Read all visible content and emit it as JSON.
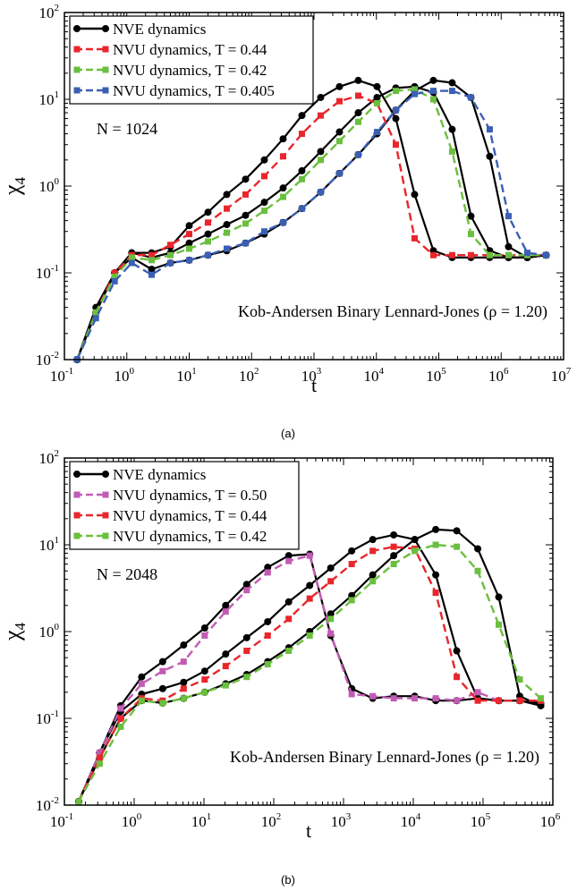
{
  "colors": {
    "nve": "#000000",
    "T050": "#c25bb4",
    "T044": "#e8262c",
    "T042": "#6abf3e",
    "T0405": "#3b5fb3"
  },
  "chart_data": [
    {
      "type": "line",
      "panel_label": "(a)",
      "xlabel": "t",
      "ylabel_main": "χ",
      "ylabel_sub": "4",
      "xscale": "log",
      "yscale": "log",
      "xlim": [
        0.1,
        10000000
      ],
      "ylim": [
        0.01,
        100
      ],
      "x_ticks": [
        {
          "v": 0.1,
          "b": "10",
          "e": "-1"
        },
        {
          "v": 1,
          "b": "10",
          "e": "0"
        },
        {
          "v": 10,
          "b": "10",
          "e": "1"
        },
        {
          "v": 100,
          "b": "10",
          "e": "2"
        },
        {
          "v": 1000,
          "b": "10",
          "e": "3"
        },
        {
          "v": 10000,
          "b": "10",
          "e": "4"
        },
        {
          "v": 100000,
          "b": "10",
          "e": "5"
        },
        {
          "v": 1000000,
          "b": "10",
          "e": "6"
        },
        {
          "v": 10000000,
          "b": "10",
          "e": "7"
        }
      ],
      "y_ticks": [
        {
          "v": 0.01,
          "b": "10",
          "e": "-2"
        },
        {
          "v": 0.1,
          "b": "10",
          "e": "-1"
        },
        {
          "v": 1,
          "b": "10",
          "e": "0"
        },
        {
          "v": 10,
          "b": "10",
          "e": "1"
        },
        {
          "v": 100,
          "b": "10",
          "e": "2"
        }
      ],
      "annotation": "N = 1024",
      "system_label": "Kob-Andersen Binary Lennard-Jones (ρ = 1.20)",
      "legend_placement": "top-left",
      "series": [
        {
          "name": "NVE dynamics",
          "color_key": "nve",
          "dashed": false,
          "marker": "circle",
          "x": [
            0.16,
            0.32,
            0.64,
            1.2,
            2.5,
            5,
            10,
            20,
            40,
            80,
            160,
            320,
            640,
            1280,
            2560,
            5120,
            10240,
            20480,
            40960,
            81920,
            163840,
            327680,
            655360,
            1310720,
            2621440,
            5242880
          ],
          "y": [
            0.01,
            0.04,
            0.1,
            0.17,
            0.17,
            0.2,
            0.35,
            0.5,
            0.8,
            1.2,
            2.0,
            3.5,
            6.5,
            10.5,
            14.0,
            16.5,
            14.0,
            6.0,
            0.8,
            0.18,
            0.15,
            0.15,
            0.15,
            0.15,
            0.15,
            0.16
          ]
        },
        {
          "name": "",
          "color_key": "nve",
          "dashed": false,
          "marker": "circle",
          "x": [
            0.16,
            0.32,
            0.64,
            1.2,
            2.5,
            5,
            10,
            20,
            40,
            80,
            160,
            320,
            640,
            1280,
            2560,
            5120,
            10240,
            20480,
            40960,
            81920,
            163840,
            327680,
            655360,
            1310720,
            2621440,
            5242880
          ],
          "y": [
            0.01,
            0.035,
            0.1,
            0.17,
            0.15,
            0.17,
            0.22,
            0.28,
            0.36,
            0.46,
            0.65,
            0.95,
            1.5,
            2.5,
            4.2,
            7.0,
            10.5,
            13.5,
            14.0,
            12.0,
            4.5,
            0.45,
            0.18,
            0.15,
            0.15,
            0.16
          ]
        },
        {
          "name": "",
          "color_key": "nve",
          "dashed": false,
          "marker": "circle",
          "x": [
            0.16,
            0.32,
            0.64,
            1.2,
            2.5,
            5,
            10,
            20,
            40,
            80,
            160,
            320,
            640,
            1280,
            2560,
            5120,
            10240,
            20480,
            40960,
            81920,
            163840,
            327680,
            655360,
            1310720,
            2621440,
            5242880
          ],
          "y": [
            0.01,
            0.035,
            0.1,
            0.15,
            0.11,
            0.13,
            0.14,
            0.16,
            0.18,
            0.22,
            0.28,
            0.38,
            0.55,
            0.85,
            1.4,
            2.3,
            4.0,
            7.5,
            12.5,
            16.5,
            15.5,
            10.5,
            2.2,
            0.2,
            0.15,
            0.16
          ]
        },
        {
          "name": "NVU dynamics, T = 0.44",
          "color_key": "T044",
          "dashed": true,
          "marker": "square",
          "x": [
            0.16,
            0.32,
            0.64,
            1.2,
            2.5,
            5,
            10,
            20,
            40,
            80,
            160,
            320,
            640,
            1280,
            2560,
            5120,
            10240,
            20480,
            40960,
            81920,
            163840,
            327680,
            655360,
            1310720,
            2621440,
            5242880
          ],
          "y": [
            0.01,
            0.035,
            0.1,
            0.16,
            0.16,
            0.21,
            0.28,
            0.38,
            0.55,
            0.8,
            1.3,
            2.2,
            4.0,
            6.5,
            9.5,
            11.0,
            9.0,
            3.0,
            0.25,
            0.16,
            0.16,
            0.16,
            0.16,
            0.16,
            0.16,
            0.16
          ]
        },
        {
          "name": "NVU dynamics, T = 0.42",
          "color_key": "T042",
          "dashed": true,
          "marker": "square",
          "x": [
            0.16,
            0.32,
            0.64,
            1.2,
            2.5,
            5,
            10,
            20,
            40,
            80,
            160,
            320,
            640,
            1280,
            2560,
            5120,
            10240,
            20480,
            40960,
            81920,
            163840,
            327680,
            655360,
            1310720,
            2621440,
            5242880
          ],
          "y": [
            0.01,
            0.035,
            0.09,
            0.15,
            0.14,
            0.16,
            0.19,
            0.23,
            0.29,
            0.37,
            0.52,
            0.75,
            1.2,
            2.0,
            3.3,
            5.5,
            9.0,
            12.5,
            13.0,
            10.0,
            2.5,
            0.28,
            0.16,
            0.16,
            0.16,
            0.16
          ]
        },
        {
          "name": "NVU dynamics, T = 0.405",
          "color_key": "T0405",
          "dashed": true,
          "marker": "square",
          "x": [
            0.16,
            0.32,
            0.64,
            1.2,
            2.5,
            5,
            10,
            20,
            40,
            80,
            160,
            320,
            640,
            1280,
            2560,
            5120,
            10240,
            20480,
            40960,
            81920,
            163840,
            327680,
            655360,
            1310720,
            2621440,
            5242880
          ],
          "y": [
            0.01,
            0.03,
            0.08,
            0.13,
            0.095,
            0.13,
            0.14,
            0.16,
            0.19,
            0.22,
            0.3,
            0.38,
            0.55,
            0.85,
            1.4,
            2.3,
            4.2,
            7.5,
            11.5,
            12.5,
            12.5,
            10.5,
            4.5,
            0.45,
            0.17,
            0.16
          ]
        }
      ]
    },
    {
      "type": "line",
      "panel_label": "(b)",
      "xlabel": "t",
      "ylabel_main": "χ",
      "ylabel_sub": "4",
      "xscale": "log",
      "yscale": "log",
      "xlim": [
        0.1,
        1000000
      ],
      "ylim": [
        0.01,
        100
      ],
      "x_ticks": [
        {
          "v": 0.1,
          "b": "10",
          "e": "-1"
        },
        {
          "v": 1,
          "b": "10",
          "e": "0"
        },
        {
          "v": 10,
          "b": "10",
          "e": "1"
        },
        {
          "v": 100,
          "b": "10",
          "e": "2"
        },
        {
          "v": 1000,
          "b": "10",
          "e": "3"
        },
        {
          "v": 10000,
          "b": "10",
          "e": "4"
        },
        {
          "v": 100000,
          "b": "10",
          "e": "5"
        },
        {
          "v": 1000000,
          "b": "10",
          "e": "6"
        }
      ],
      "y_ticks": [
        {
          "v": 0.01,
          "b": "10",
          "e": "-2"
        },
        {
          "v": 0.1,
          "b": "10",
          "e": "-1"
        },
        {
          "v": 1,
          "b": "10",
          "e": "0"
        },
        {
          "v": 10,
          "b": "10",
          "e": "1"
        },
        {
          "v": 100,
          "b": "10",
          "e": "2"
        }
      ],
      "annotation": "N = 2048",
      "system_label": "Kob-Andersen Binary Lennard-Jones (ρ = 1.20)",
      "legend_placement": "top-left",
      "series": [
        {
          "name": "NVE dynamics",
          "color_key": "nve",
          "dashed": false,
          "marker": "circle",
          "x": [
            0.16,
            0.32,
            0.64,
            1.28,
            2.56,
            5.12,
            10.24,
            20.48,
            40.96,
            81.92,
            163.84,
            327.68,
            655.36,
            1310.72,
            2621.44,
            5242.88,
            10485.76,
            20971.52,
            41943.04,
            83886.08,
            167772.16,
            335544.32,
            671088.64
          ],
          "y": [
            0.011,
            0.04,
            0.14,
            0.3,
            0.45,
            0.7,
            1.1,
            2.0,
            3.5,
            5.5,
            7.5,
            7.8,
            0.9,
            0.22,
            0.17,
            0.18,
            0.18,
            0.16,
            0.16,
            0.17,
            0.16,
            0.16,
            0.14
          ]
        },
        {
          "name": "",
          "color_key": "nve",
          "dashed": false,
          "marker": "circle",
          "x": [
            0.16,
            0.32,
            0.64,
            1.28,
            2.56,
            5.12,
            10.24,
            20.48,
            40.96,
            81.92,
            163.84,
            327.68,
            655.36,
            1310.72,
            2621.44,
            5242.88,
            10485.76,
            20971.52,
            41943.04,
            83886.08,
            167772.16,
            335544.32,
            671088.64
          ],
          "y": [
            0.011,
            0.04,
            0.12,
            0.19,
            0.22,
            0.26,
            0.35,
            0.55,
            0.85,
            1.3,
            2.2,
            3.4,
            5.4,
            8.5,
            11.5,
            13.0,
            11.5,
            4.5,
            0.6,
            0.17,
            0.16,
            0.16,
            0.15
          ]
        },
        {
          "name": "",
          "color_key": "nve",
          "dashed": false,
          "marker": "circle",
          "x": [
            0.16,
            0.32,
            0.64,
            1.28,
            2.56,
            5.12,
            10.24,
            20.48,
            40.96,
            81.92,
            163.84,
            327.68,
            655.36,
            1310.72,
            2621.44,
            5242.88,
            10485.76,
            20971.52,
            41943.04,
            83886.08,
            167772.16,
            335544.32,
            671088.64
          ],
          "y": [
            0.011,
            0.035,
            0.1,
            0.16,
            0.15,
            0.17,
            0.2,
            0.25,
            0.32,
            0.45,
            0.65,
            1.0,
            1.6,
            2.6,
            4.5,
            7.5,
            11.5,
            15.0,
            14.5,
            9.0,
            2.5,
            0.18,
            0.14
          ]
        },
        {
          "name": "NVU dynamics, T = 0.50",
          "color_key": "T050",
          "dashed": true,
          "marker": "square",
          "x": [
            0.16,
            0.32,
            0.64,
            1.28,
            2.56,
            5.12,
            10.24,
            20.48,
            40.96,
            81.92,
            163.84,
            327.68,
            655.36,
            1310.72,
            2621.44,
            5242.88,
            10485.76,
            20971.52,
            41943.04,
            83886.08,
            167772.16,
            335544.32,
            671088.64
          ],
          "y": [
            0.011,
            0.04,
            0.13,
            0.25,
            0.35,
            0.45,
            0.9,
            1.7,
            3.0,
            4.8,
            6.5,
            7.5,
            0.95,
            0.19,
            0.18,
            0.17,
            0.17,
            0.17,
            0.16,
            0.2,
            0.16,
            0.16,
            0.16
          ]
        },
        {
          "name": "NVU dynamics, T = 0.44",
          "color_key": "T044",
          "dashed": true,
          "marker": "square",
          "x": [
            0.16,
            0.32,
            0.64,
            1.28,
            2.56,
            5.12,
            10.24,
            20.48,
            40.96,
            81.92,
            163.84,
            327.68,
            655.36,
            1310.72,
            2621.44,
            5242.88,
            10485.76,
            20971.52,
            41943.04,
            83886.08,
            167772.16,
            335544.32,
            671088.64
          ],
          "y": [
            0.011,
            0.035,
            0.1,
            0.17,
            0.16,
            0.22,
            0.28,
            0.4,
            0.6,
            0.9,
            1.4,
            2.4,
            3.8,
            6.0,
            8.5,
            9.5,
            9.0,
            2.8,
            0.3,
            0.16,
            0.16,
            0.16,
            0.16
          ]
        },
        {
          "name": "NVU dynamics, T = 0.42",
          "color_key": "T042",
          "dashed": true,
          "marker": "square",
          "x": [
            0.16,
            0.32,
            0.64,
            1.28,
            2.56,
            5.12,
            10.24,
            20.48,
            40.96,
            81.92,
            163.84,
            327.68,
            655.36,
            1310.72,
            2621.44,
            5242.88,
            10485.76,
            20971.52,
            41943.04,
            83886.08,
            167772.16,
            335544.32,
            671088.64
          ],
          "y": [
            0.011,
            0.03,
            0.08,
            0.16,
            0.15,
            0.17,
            0.2,
            0.24,
            0.3,
            0.42,
            0.6,
            0.9,
            1.4,
            2.3,
            3.8,
            6.0,
            8.5,
            10.0,
            9.5,
            5.0,
            1.2,
            0.28,
            0.17
          ]
        }
      ]
    }
  ]
}
